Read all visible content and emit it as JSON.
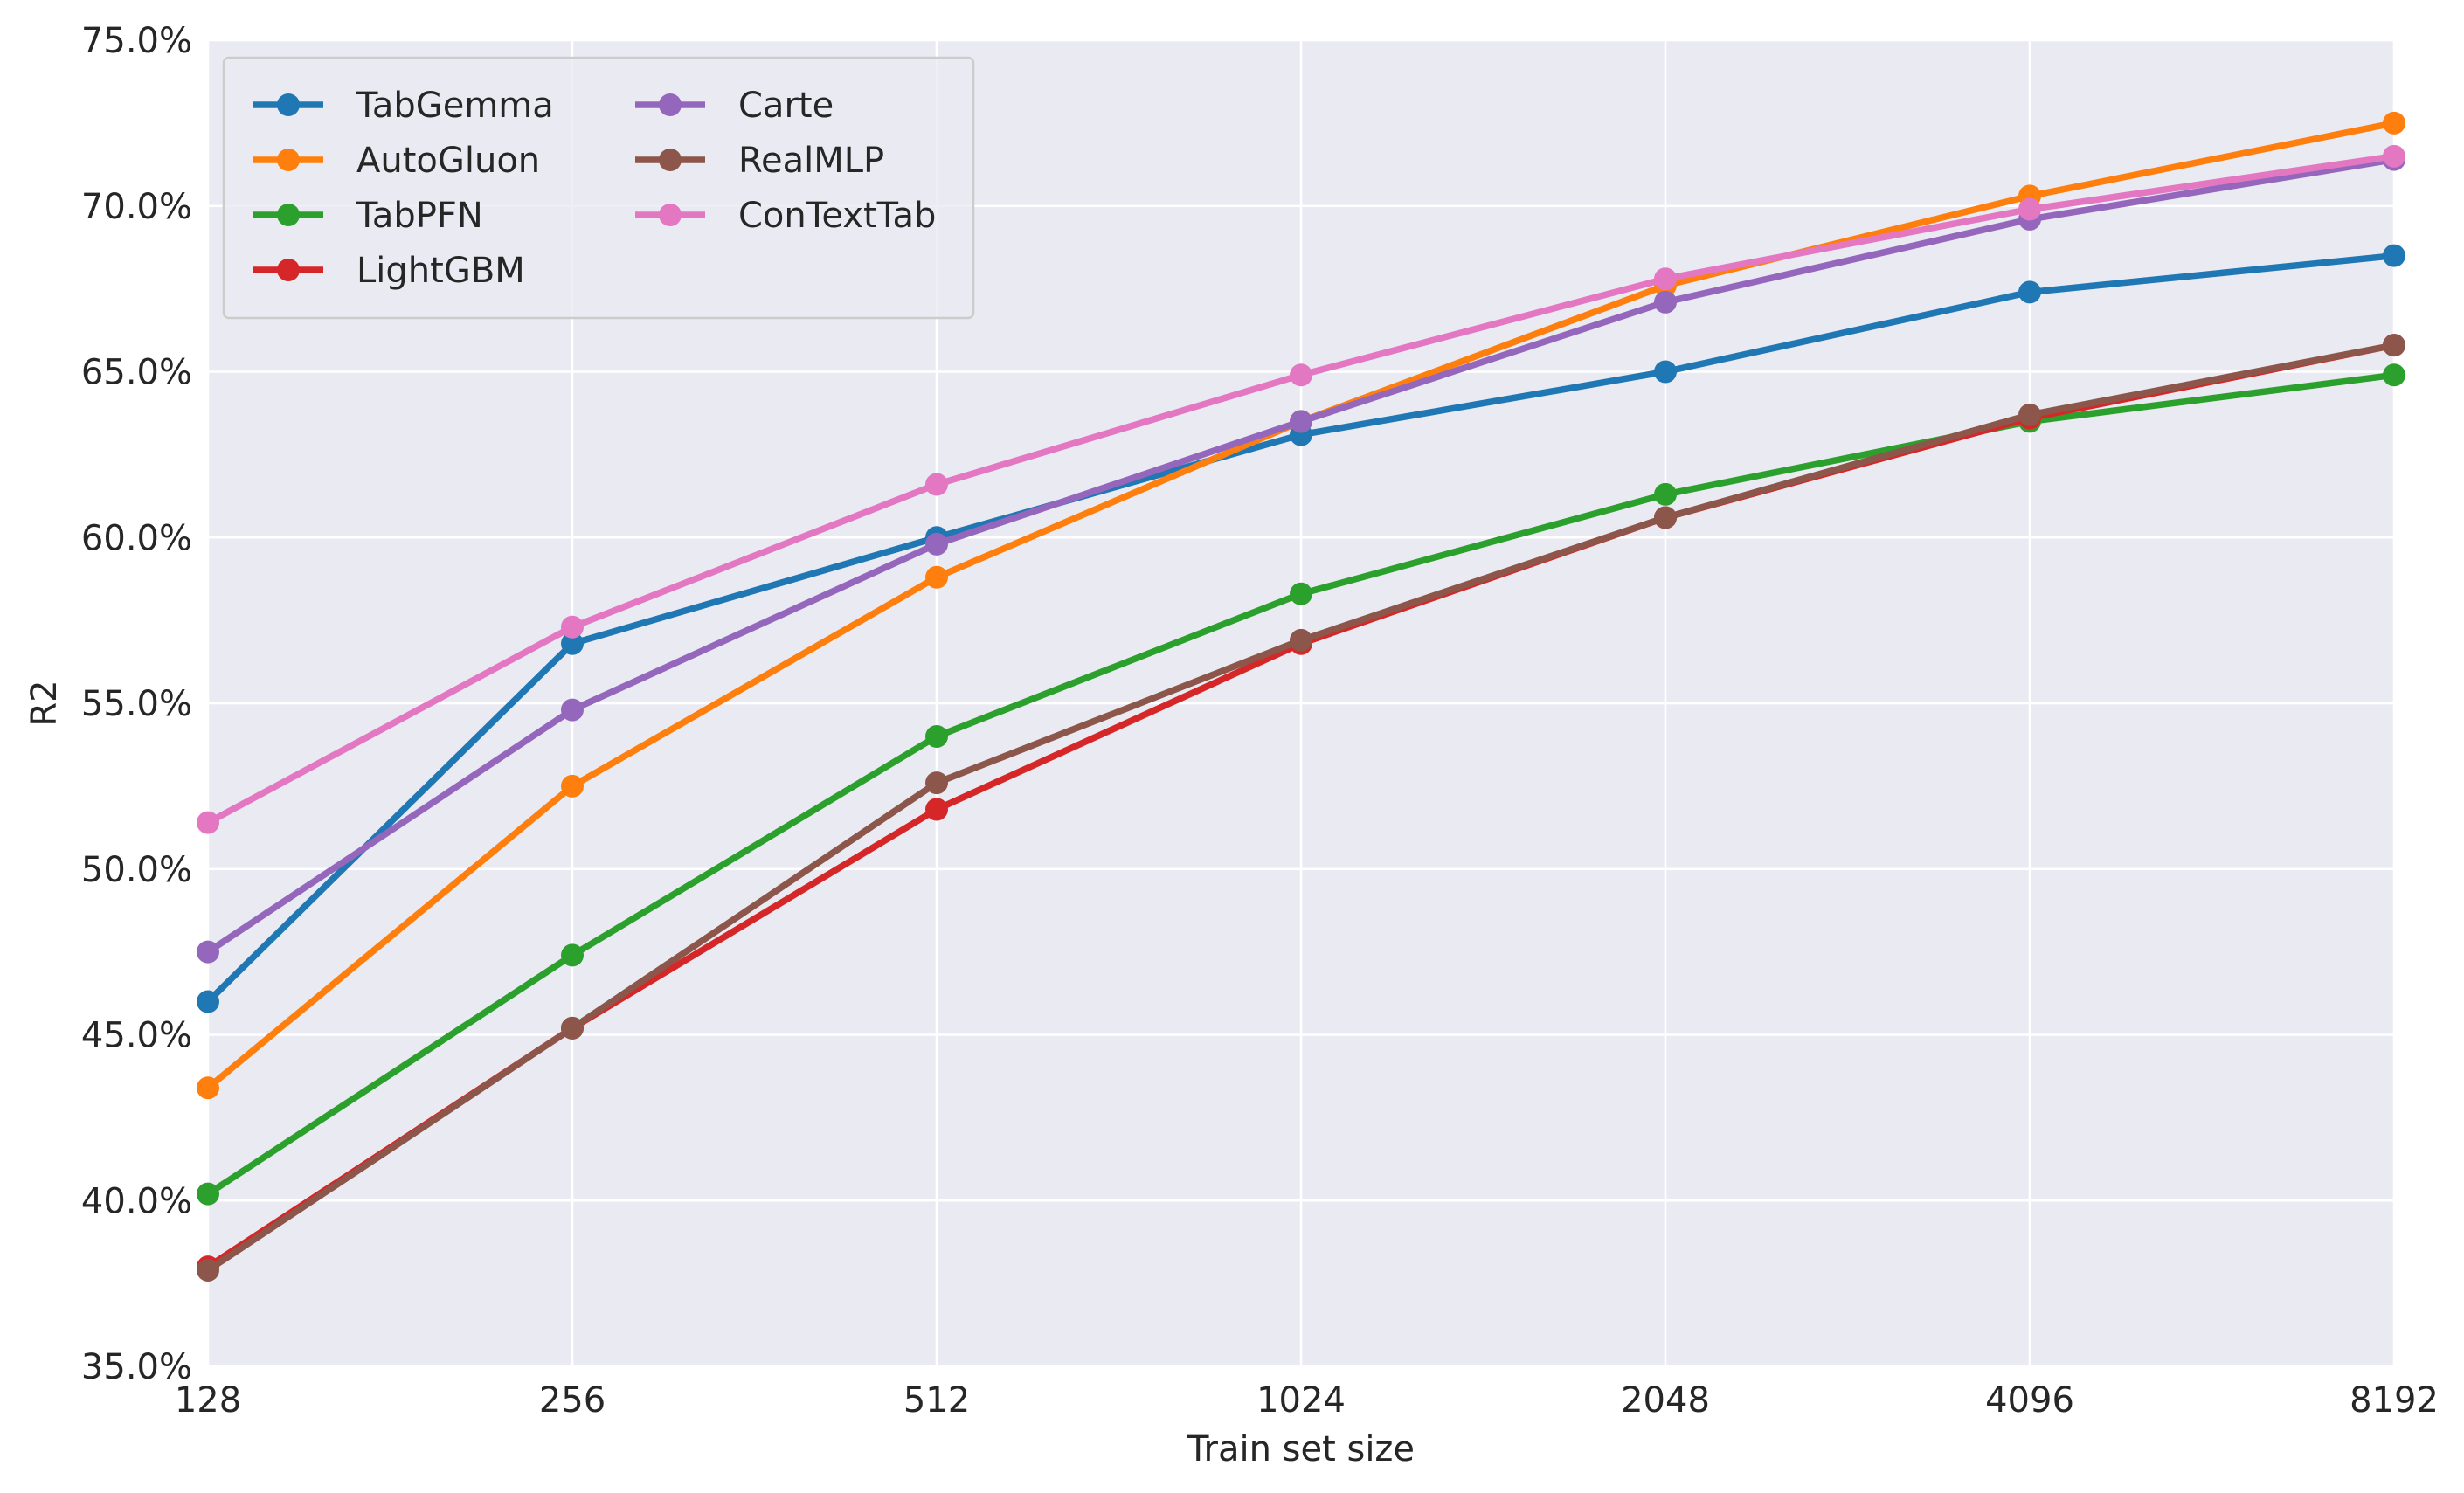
{
  "chart_data": {
    "type": "line",
    "title": "",
    "xlabel": "Train set size",
    "ylabel": "R2",
    "categories": [
      "128",
      "256",
      "512",
      "1024",
      "2048",
      "4096",
      "8192"
    ],
    "ylim": [
      0.35,
      0.75
    ],
    "yticks": [
      0.35,
      0.4,
      0.45,
      0.5,
      0.55,
      0.6,
      0.65,
      0.7,
      0.75
    ],
    "ytick_labels": [
      "35.0%",
      "40.0%",
      "45.0%",
      "50.0%",
      "55.0%",
      "60.0%",
      "65.0%",
      "70.0%",
      "75.0%"
    ],
    "grid": true,
    "legend_position": "top-left",
    "series": [
      {
        "name": "TabGemma",
        "color": "#1f77b4",
        "values": [
          0.46,
          0.568,
          0.6,
          0.631,
          0.65,
          0.674,
          0.685
        ]
      },
      {
        "name": "AutoGluon",
        "color": "#ff7f0e",
        "values": [
          0.434,
          0.525,
          0.588,
          0.635,
          0.676,
          0.703,
          0.725
        ]
      },
      {
        "name": "TabPFN",
        "color": "#2ca02c",
        "values": [
          0.402,
          0.474,
          0.54,
          0.583,
          0.613,
          0.635,
          0.649
        ]
      },
      {
        "name": "LightGBM",
        "color": "#d62728",
        "values": [
          0.38,
          0.452,
          0.518,
          0.568,
          0.606,
          0.636,
          0.658
        ]
      },
      {
        "name": "Carte",
        "color": "#9467bd",
        "values": [
          0.475,
          0.548,
          0.598,
          0.635,
          0.671,
          0.696,
          0.714
        ]
      },
      {
        "name": "RealMLP",
        "color": "#8c564b",
        "values": [
          0.379,
          0.452,
          0.526,
          0.569,
          0.606,
          0.637,
          0.658
        ]
      },
      {
        "name": "ConTextTab",
        "color": "#e377c2",
        "values": [
          0.514,
          0.573,
          0.616,
          0.649,
          0.678,
          0.699,
          0.715
        ]
      }
    ]
  }
}
